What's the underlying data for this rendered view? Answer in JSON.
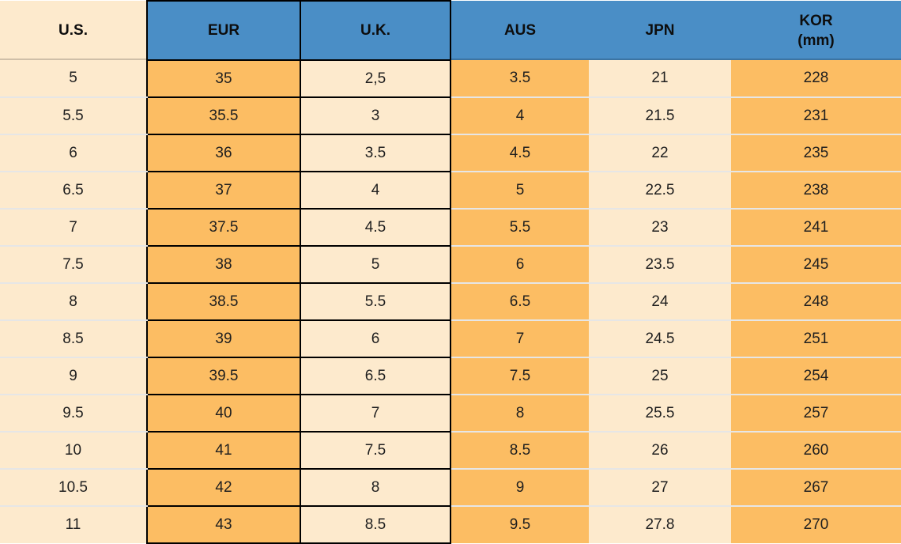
{
  "chart_data": {
    "type": "table",
    "columns": [
      {
        "key": "us",
        "label": "U.S.",
        "tone": "cream",
        "bordered": false
      },
      {
        "key": "eur",
        "label": "EUR",
        "tone": "orange",
        "bordered": true
      },
      {
        "key": "uk",
        "label": "U.K.",
        "tone": "cream",
        "bordered": true
      },
      {
        "key": "aus",
        "label": "AUS",
        "tone": "orange",
        "bordered": false
      },
      {
        "key": "jpn",
        "label": "JPN",
        "tone": "cream",
        "bordered": false
      },
      {
        "key": "kor",
        "label": "KOR",
        "label2": "(mm)",
        "tone": "orange",
        "bordered": false
      }
    ],
    "rows": [
      [
        "5",
        "35",
        "2,5",
        "3.5",
        "21",
        "228"
      ],
      [
        "5.5",
        "35.5",
        "3",
        "4",
        "21.5",
        "231"
      ],
      [
        "6",
        "36",
        "3.5",
        "4.5",
        "22",
        "235"
      ],
      [
        "6.5",
        "37",
        "4",
        "5",
        "22.5",
        "238"
      ],
      [
        "7",
        "37.5",
        "4.5",
        "5.5",
        "23",
        "241"
      ],
      [
        "7.5",
        "38",
        "5",
        "6",
        "23.5",
        "245"
      ],
      [
        "8",
        "38.5",
        "5.5",
        "6.5",
        "24",
        "248"
      ],
      [
        "8.5",
        "39",
        "6",
        "7",
        "24.5",
        "251"
      ],
      [
        "9",
        "39.5",
        "6.5",
        "7.5",
        "25",
        "254"
      ],
      [
        "9.5",
        "40",
        "7",
        "8",
        "25.5",
        "257"
      ],
      [
        "10",
        "41",
        "7.5",
        "8.5",
        "26",
        "260"
      ],
      [
        "10.5",
        "42",
        "8",
        "9",
        "27",
        "267"
      ],
      [
        "11",
        "43",
        "8.5",
        "9.5",
        "27.8",
        "270"
      ]
    ]
  },
  "colors": {
    "header_bg": "#4a8ec6",
    "header_text": "#0d0d0d",
    "orange_cell": "#fcbd63",
    "cream_cell": "#fdeacd",
    "border_black": "#000000",
    "gridline": "#e6e6e6",
    "text": "#1f1f1f"
  }
}
